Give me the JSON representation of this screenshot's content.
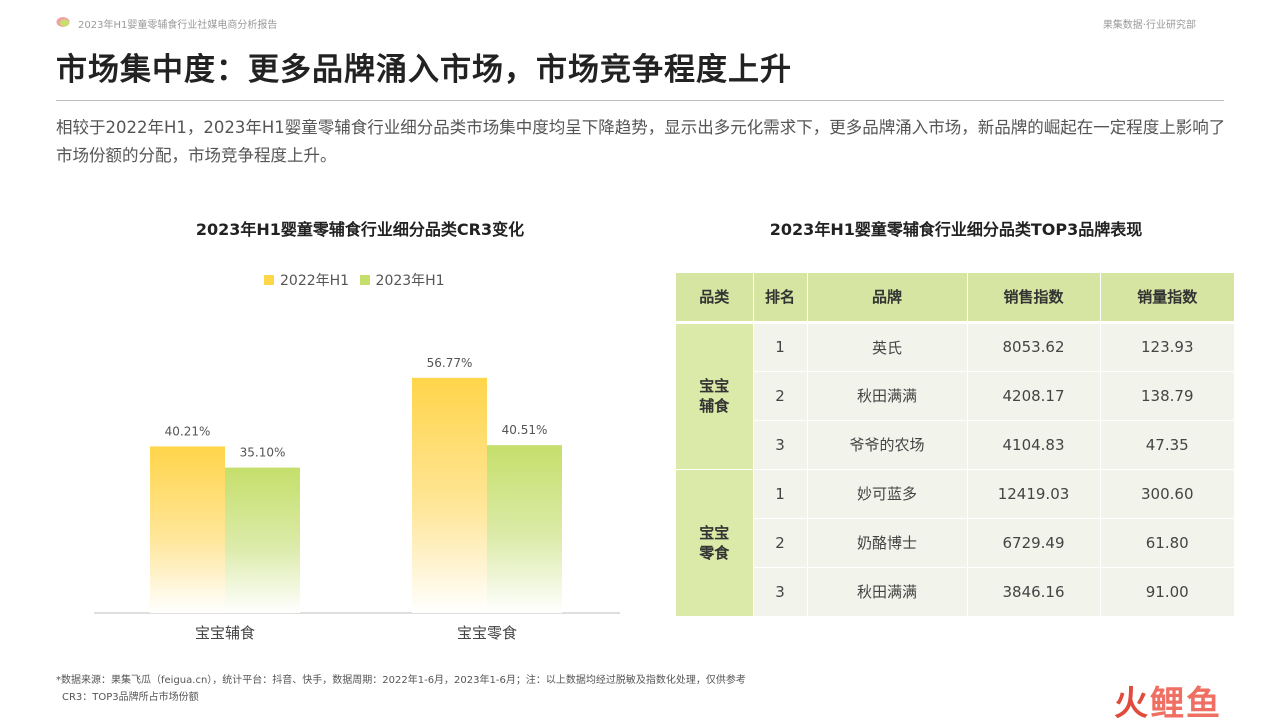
{
  "header": {
    "report_name": "2023年H1婴童零辅食行业社媒电商分析报告",
    "department": "果集数据·行业研究部"
  },
  "title": "市场集中度：更多品牌涌入市场，市场竞争程度上升",
  "intro": "相较于2022年H1，2023年H1婴童零辅食行业细分品类市场集中度均呈下降趋势，显示出多元化需求下，更多品牌涌入市场，新品牌的崛起在一定程度上影响了市场份额的分配，市场竞争程度上升。",
  "chart_data": {
    "type": "bar",
    "title": "2023年H1婴童零辅食行业细分品类CR3变化",
    "categories": [
      "宝宝辅食",
      "宝宝零食"
    ],
    "series": [
      {
        "name": "2022年H1",
        "values": [
          40.21,
          56.77
        ],
        "labels": [
          "40.21%",
          "56.77%"
        ],
        "color": "#ffd54a"
      },
      {
        "name": "2023年H1",
        "values": [
          35.1,
          40.51
        ],
        "labels": [
          "35.10%",
          "40.51%"
        ],
        "color": "#c5df6b"
      }
    ],
    "ylim": [
      0,
      70
    ],
    "unit": "%",
    "grid": false,
    "legend_position": "top"
  },
  "table": {
    "title": "2023年H1婴童零辅食行业细分品类TOP3品牌表现",
    "headers": [
      "品类",
      "排名",
      "品牌",
      "销售指数",
      "销量指数"
    ],
    "groups": [
      {
        "category": "宝宝辅食",
        "category_lines": [
          "宝宝",
          "辅食"
        ],
        "rows": [
          {
            "rank": "1",
            "brand": "英氏",
            "sales_index": "8053.62",
            "volume_index": "123.93"
          },
          {
            "rank": "2",
            "brand": "秋田满满",
            "sales_index": "4208.17",
            "volume_index": "138.79"
          },
          {
            "rank": "3",
            "brand": "爷爷的农场",
            "sales_index": "4104.83",
            "volume_index": "47.35"
          }
        ]
      },
      {
        "category": "宝宝零食",
        "category_lines": [
          "宝宝",
          "零食"
        ],
        "rows": [
          {
            "rank": "1",
            "brand": "妙可蓝多",
            "sales_index": "12419.03",
            "volume_index": "300.60"
          },
          {
            "rank": "2",
            "brand": "奶酪博士",
            "sales_index": "6729.49",
            "volume_index": "61.80"
          },
          {
            "rank": "3",
            "brand": "秋田满满",
            "sales_index": "3846.16",
            "volume_index": "91.00"
          }
        ]
      }
    ]
  },
  "footnotes": [
    "*数据来源：果集飞瓜（feigua.cn），统计平台：抖音、快手，数据周期：2022年1-6月，2023年1-6月；注：以上数据均经过脱敏及指数化处理，仅供参考",
    "CR3：TOP3品牌所占市场份额"
  ],
  "watermark": {
    "part1": "火",
    "part2": "鲤鱼"
  }
}
